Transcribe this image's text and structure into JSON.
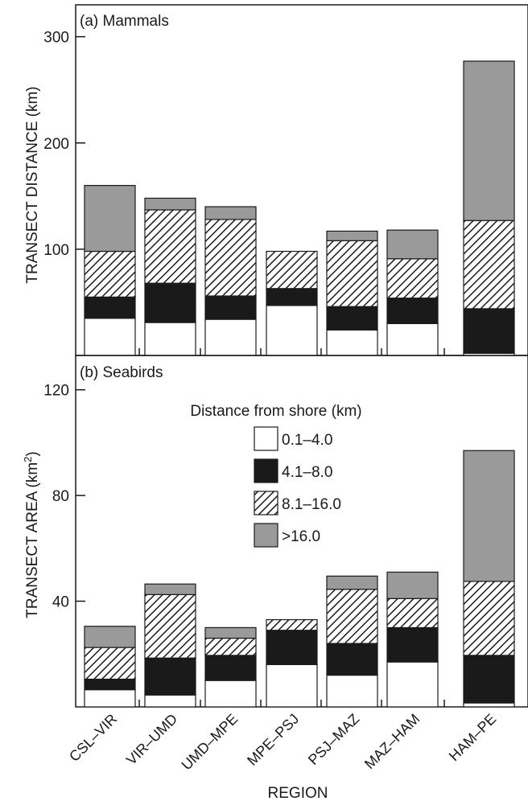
{
  "colors": {
    "open": "#ffffff",
    "black": "#1a1a1a",
    "hatch": "#1a1a1a",
    "gray": "#9a9a9a",
    "axis": "#1a1a1a"
  },
  "xlabel": "REGION",
  "legend": {
    "title": "Distance from shore (km)",
    "entries": [
      "0.1–4.0",
      "4.1–8.0",
      "8.1–16.0",
      ">16.0"
    ]
  },
  "chart_data": [
    {
      "type": "bar",
      "stacked": true,
      "title": "(a) Mammals",
      "ylabel": "TRANSECT DISTANCE (km)",
      "ylim": [
        0,
        330
      ],
      "yticks": [
        100,
        200,
        300
      ],
      "categories": [
        "CSL–VIR",
        "VIR–UMD",
        "UMD–MPE",
        "MPE–PSJ",
        "PSJ–MAZ",
        "MAZ–HAM",
        "HAM–PE"
      ],
      "series": [
        {
          "name": "0.1–4.0",
          "values": [
            35,
            31,
            34,
            47,
            24,
            30,
            2
          ]
        },
        {
          "name": "4.1–8.0",
          "values": [
            20,
            37,
            22,
            16,
            22,
            24,
            42
          ]
        },
        {
          "name": "8.1–16.0",
          "values": [
            43,
            69,
            72,
            35,
            62,
            37,
            83
          ]
        },
        {
          "name": ">16.0",
          "values": [
            62,
            11,
            12,
            0,
            9,
            27,
            150
          ]
        }
      ]
    },
    {
      "type": "bar",
      "stacked": true,
      "title": "(b) Seabirds",
      "ylabel": "TRANSECT AREA (km",
      "ylabel_sup": "2",
      "ylabel_end": ")",
      "ylim": [
        0,
        133
      ],
      "yticks": [
        40,
        80,
        120
      ],
      "categories": [
        "CSL–VIR",
        "VIR–UMD",
        "UMD–MPE",
        "MPE–PSJ",
        "PSJ–MAZ",
        "MAZ–HAM",
        "HAM–PE"
      ],
      "series": [
        {
          "name": "0.1–4.0",
          "values": [
            6.5,
            4.5,
            10,
            16,
            12,
            17,
            1.5
          ]
        },
        {
          "name": "4.1–8.0",
          "values": [
            4,
            14,
            9.5,
            13,
            12,
            13,
            18
          ]
        },
        {
          "name": "8.1–16.0",
          "values": [
            12,
            24,
            6.5,
            4,
            20.5,
            11,
            28
          ]
        },
        {
          "name": ">16.0",
          "values": [
            8,
            4,
            4,
            0,
            5,
            10,
            49.5
          ]
        }
      ]
    }
  ]
}
